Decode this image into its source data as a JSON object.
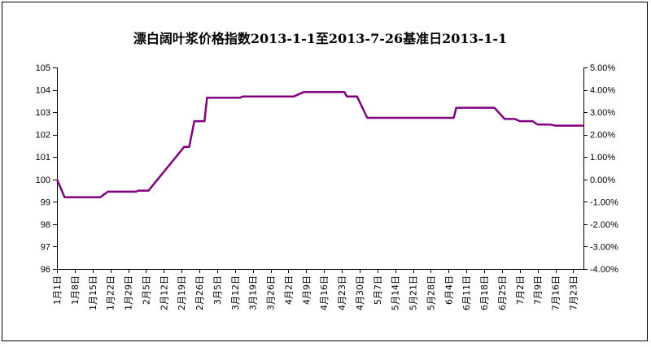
{
  "chart_data": {
    "type": "line",
    "title": "漂白阔叶浆价格指数2013-1-1至2013-7-26基准日2013-1-1",
    "xlabel": "",
    "ylabel": "",
    "y_left": {
      "lim": [
        96,
        105
      ],
      "ticks": [
        "96",
        "97",
        "98",
        "99",
        "100",
        "101",
        "102",
        "103",
        "104",
        "105"
      ]
    },
    "y_right": {
      "lim": [
        -4,
        5
      ],
      "ticks": [
        "-4.00%",
        "-3.00%",
        "-2.00%",
        "-1.00%",
        "0.00%",
        "1.00%",
        "2.00%",
        "3.00%",
        "4.00%",
        "5.00%"
      ]
    },
    "x_tick_labels": [
      "1月1日",
      "1月8日",
      "1月15日",
      "1月22日",
      "1月29日",
      "2月5日",
      "2月12日",
      "2月19日",
      "2月26日",
      "3月5日",
      "3月12日",
      "3月19日",
      "3月26日",
      "4月2日",
      "4月9日",
      "4月16日",
      "4月23日",
      "4月30日",
      "5月7日",
      "5月14日",
      "5月21日",
      "5月28日",
      "6月4日",
      "6月11日",
      "6月18日",
      "6月25日",
      "7月2日",
      "7月9日",
      "7月16日",
      "7月23日"
    ],
    "x_range_days": [
      0,
      207
    ],
    "series": [
      {
        "color": "#800080",
        "points": [
          [
            0,
            100.0
          ],
          [
            3,
            99.2
          ],
          [
            17,
            99.2
          ],
          [
            20,
            99.45
          ],
          [
            31,
            99.45
          ],
          [
            32,
            99.5
          ],
          [
            36,
            99.5
          ],
          [
            50,
            101.45
          ],
          [
            52,
            101.45
          ],
          [
            54,
            102.6
          ],
          [
            58,
            102.6
          ],
          [
            59,
            103.65
          ],
          [
            72,
            103.65
          ],
          [
            73,
            103.7
          ],
          [
            93,
            103.7
          ],
          [
            97,
            103.9
          ],
          [
            113,
            103.9
          ],
          [
            114,
            103.7
          ],
          [
            118,
            103.7
          ],
          [
            122,
            102.75
          ],
          [
            156,
            102.75
          ],
          [
            157,
            103.2
          ],
          [
            172,
            103.2
          ],
          [
            176,
            102.7
          ],
          [
            180,
            102.7
          ],
          [
            182,
            102.6
          ],
          [
            187,
            102.6
          ],
          [
            189,
            102.45
          ],
          [
            194,
            102.45
          ],
          [
            196,
            102.4
          ],
          [
            207,
            102.4
          ]
        ]
      }
    ],
    "grid": false,
    "legend": "none"
  }
}
